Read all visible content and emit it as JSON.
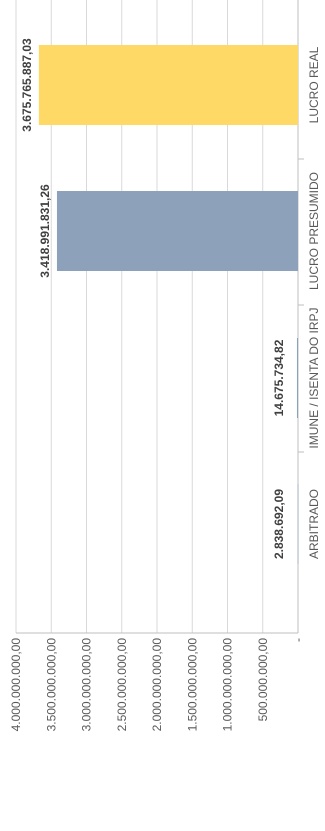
{
  "chart_data": {
    "type": "bar",
    "orientation": "horizontal",
    "categories": [
      "LUCRO REAL",
      "LUCRO PRESUMIDO",
      "IMUNE / ISENTA DO IRPJ",
      "ARBITRADO"
    ],
    "values": [
      3675765887.03,
      3418991831.26,
      14675734.82,
      2838692.09
    ],
    "data_labels": [
      "3.675.765.887,03",
      "3.418.991.831,26",
      "14.675.734,82",
      "2.838.692,09"
    ],
    "bar_colors": [
      "#FFD966",
      "#8EA1BB",
      "#8EA1BB",
      "#8EA1BB"
    ],
    "value_axis": {
      "range": [
        0,
        4000000000
      ],
      "ticks": [
        0,
        500000000,
        1000000000,
        1500000000,
        2000000000,
        2500000000,
        3000000000,
        3500000000,
        4000000000
      ],
      "tick_labels": [
        "-",
        "500.000.000,00",
        "1.000.000.000,00",
        "1.500.000.000,00",
        "2.000.000.000,00",
        "2.500.000.000,00",
        "3.000.000.000,00",
        "3.500.000.000,00",
        "4.000.000.000,00"
      ]
    },
    "grid": true,
    "legend": "none",
    "title": "",
    "xlabel": "",
    "ylabel": ""
  }
}
